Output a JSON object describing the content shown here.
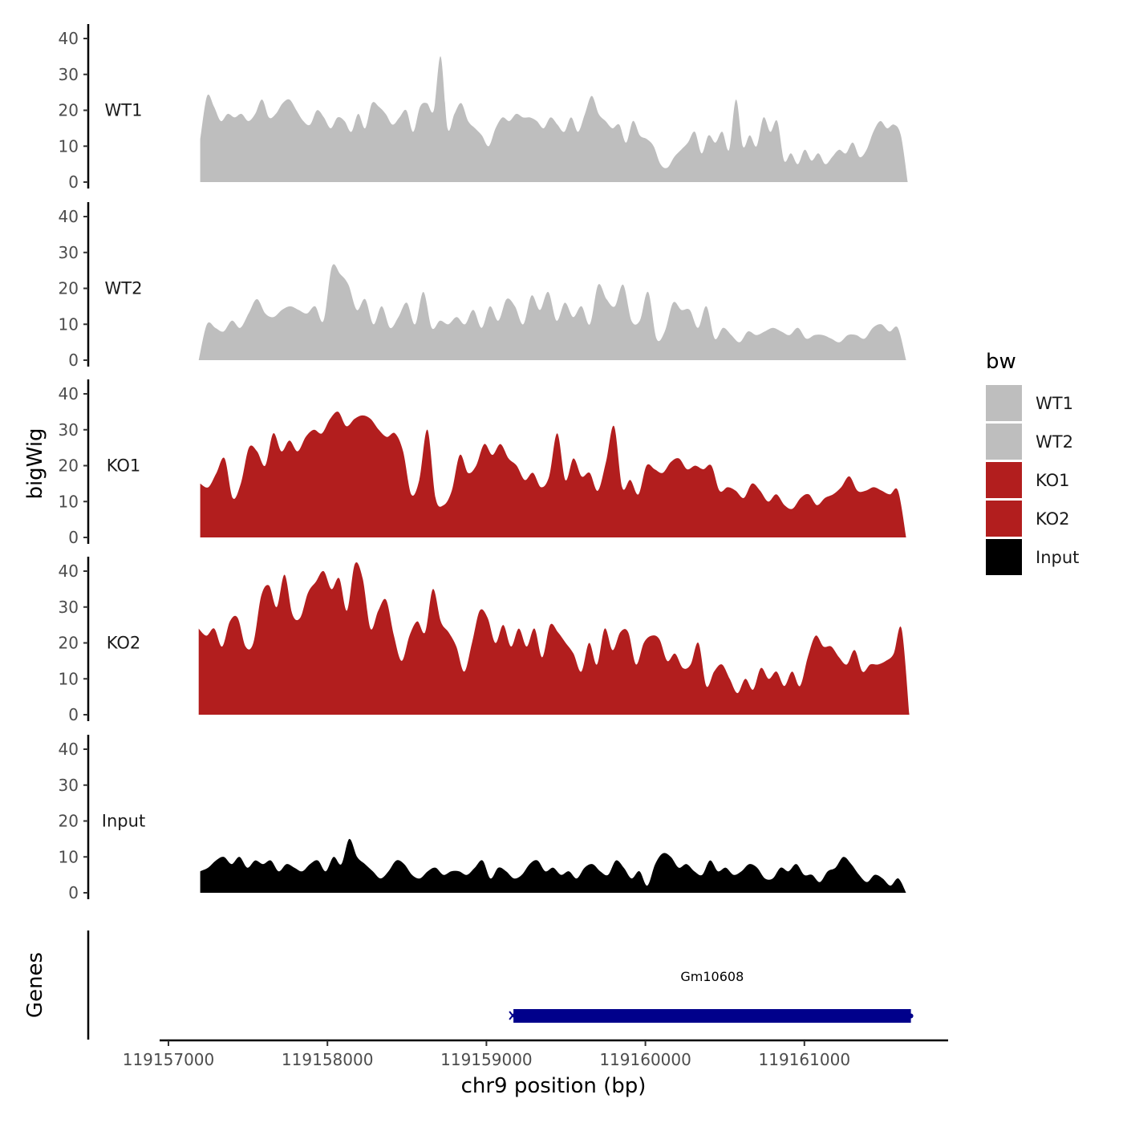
{
  "chart_data": {
    "type": "area",
    "xlabel": "chr9 position (bp)",
    "ylabel": "bigWig",
    "genes_label": "Genes",
    "xlim": [
      119156950,
      119161900
    ],
    "x_ticks": [
      119157000,
      119158000,
      119159000,
      119160000,
      119161000
    ],
    "x_tick_labels": [
      "119157000",
      "119158000",
      "119159000",
      "119160000",
      "119161000"
    ],
    "ylim": [
      0,
      44
    ],
    "y_ticks": [
      0,
      10,
      20,
      30,
      40
    ],
    "y_tick_labels": [
      "0",
      "10",
      "20",
      "30",
      "40"
    ],
    "legend": {
      "title": "bw",
      "position": "right",
      "entries": [
        {
          "label": "WT1",
          "color": "#bebebe"
        },
        {
          "label": "WT2",
          "color": "#bebebe"
        },
        {
          "label": "KO1",
          "color": "#b21e1e"
        },
        {
          "label": "KO2",
          "color": "#b21e1e"
        },
        {
          "label": "Input",
          "color": "#000000"
        }
      ]
    },
    "series": [
      {
        "name": "WT1",
        "color": "#bebebe",
        "x_start": 119157200,
        "x_end": 119161650,
        "values": [
          12,
          24,
          21,
          17,
          19,
          18,
          19,
          17,
          19,
          23,
          18,
          19,
          22,
          23,
          20,
          17,
          16,
          20,
          18,
          15,
          18,
          17,
          14,
          19,
          15,
          22,
          21,
          19,
          16,
          18,
          20,
          14,
          21,
          22,
          20,
          35,
          15,
          19,
          22,
          17,
          15,
          13,
          10,
          15,
          18,
          17,
          19,
          18,
          18,
          17,
          15,
          18,
          16,
          14,
          18,
          14,
          19,
          24,
          19,
          17,
          15,
          16,
          11,
          17,
          13,
          12,
          10,
          5,
          4,
          7,
          9,
          11,
          14,
          8,
          13,
          11,
          14,
          9,
          23,
          10,
          13,
          10,
          18,
          14,
          17,
          6,
          8,
          5,
          9,
          6,
          8,
          5,
          7,
          9,
          8,
          11,
          7,
          9,
          14,
          17,
          15,
          16,
          13,
          0
        ]
      },
      {
        "name": "WT2",
        "color": "#bebebe",
        "x_start": 119157190,
        "x_end": 119161640,
        "values": [
          0,
          10,
          9,
          8,
          11,
          9,
          13,
          17,
          13,
          12,
          14,
          15,
          14,
          13,
          15,
          11,
          26,
          24,
          21,
          14,
          17,
          10,
          15,
          9,
          12,
          16,
          10,
          19,
          9,
          11,
          10,
          12,
          10,
          14,
          9,
          15,
          11,
          17,
          15,
          10,
          18,
          14,
          19,
          11,
          16,
          12,
          15,
          10,
          21,
          17,
          15,
          21,
          11,
          11,
          19,
          6,
          8,
          16,
          14,
          14,
          9,
          15,
          6,
          9,
          7,
          5,
          8,
          7,
          8,
          9,
          8,
          7,
          9,
          6,
          7,
          7,
          6,
          5,
          7,
          7,
          6,
          9,
          10,
          8,
          9,
          0
        ]
      },
      {
        "name": "KO1",
        "color": "#b21e1e",
        "x_start": 119157200,
        "x_end": 119161640,
        "values": [
          15,
          14,
          18,
          22,
          11,
          15,
          25,
          24,
          20,
          29,
          24,
          27,
          24,
          28,
          30,
          29,
          33,
          35,
          31,
          33,
          34,
          33,
          30,
          28,
          29,
          24,
          12,
          16,
          30,
          11,
          9,
          13,
          23,
          18,
          20,
          26,
          23,
          26,
          22,
          20,
          16,
          18,
          14,
          17,
          29,
          16,
          22,
          17,
          18,
          13,
          21,
          31,
          14,
          16,
          12,
          20,
          19,
          18,
          21,
          22,
          19,
          20,
          19,
          20,
          13,
          14,
          13,
          11,
          15,
          13,
          10,
          12,
          9,
          8,
          11,
          12,
          9,
          11,
          12,
          14,
          17,
          13,
          13,
          14,
          13,
          12,
          13,
          0
        ]
      },
      {
        "name": "KO2",
        "color": "#b21e1e",
        "x_start": 119157190,
        "x_end": 119161660,
        "values": [
          24,
          22,
          24,
          19,
          26,
          27,
          19,
          20,
          33,
          36,
          30,
          39,
          28,
          27,
          34,
          37,
          40,
          35,
          38,
          29,
          42,
          38,
          24,
          29,
          32,
          22,
          15,
          22,
          26,
          23,
          35,
          26,
          23,
          19,
          12,
          20,
          29,
          27,
          20,
          25,
          19,
          24,
          19,
          24,
          16,
          25,
          23,
          20,
          17,
          12,
          20,
          14,
          24,
          18,
          23,
          23,
          14,
          20,
          22,
          21,
          15,
          17,
          13,
          14,
          20,
          8,
          12,
          14,
          10,
          6,
          10,
          7,
          13,
          10,
          12,
          8,
          12,
          8,
          16,
          22,
          19,
          19,
          16,
          14,
          18,
          12,
          14,
          14,
          15,
          17,
          24,
          0
        ]
      },
      {
        "name": "Input",
        "color": "#000000",
        "x_start": 119157200,
        "x_end": 119161640,
        "values": [
          6,
          7,
          9,
          10,
          8,
          10,
          7,
          9,
          8,
          9,
          6,
          8,
          7,
          6,
          8,
          9,
          6,
          10,
          8,
          15,
          10,
          8,
          6,
          4,
          6,
          9,
          8,
          5,
          4,
          6,
          7,
          5,
          6,
          6,
          5,
          7,
          9,
          4,
          7,
          6,
          4,
          5,
          8,
          9,
          6,
          7,
          5,
          6,
          4,
          7,
          8,
          6,
          5,
          9,
          7,
          4,
          6,
          2,
          8,
          11,
          10,
          7,
          8,
          6,
          5,
          9,
          6,
          7,
          5,
          6,
          8,
          7,
          4,
          4,
          7,
          6,
          8,
          5,
          5,
          3,
          6,
          7,
          10,
          8,
          5,
          3,
          5,
          4,
          2,
          4,
          0
        ]
      }
    ],
    "genes": [
      {
        "name": "Gm10608",
        "start": 119159170,
        "end": 119161670,
        "color": "#00008b"
      }
    ]
  }
}
